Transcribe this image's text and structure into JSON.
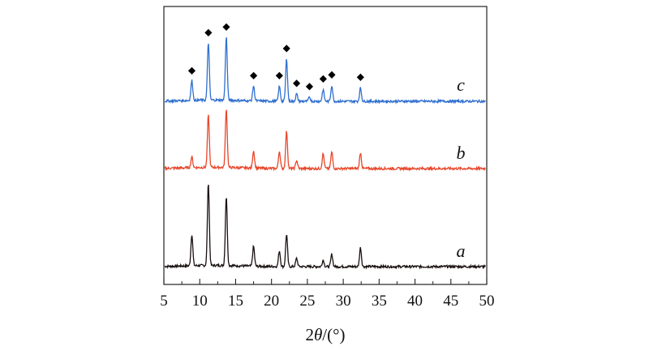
{
  "chart_data": {
    "type": "line",
    "xlabel_prefix": "2",
    "xlabel_theta": "θ",
    "xlabel_suffix": "/(°)",
    "ylabel": "",
    "xlim": [
      5,
      50
    ],
    "x_ticks": [
      5,
      10,
      15,
      20,
      25,
      30,
      35,
      40,
      45,
      50
    ],
    "x_tick_labels": [
      "5",
      "10",
      "15",
      "20",
      "25",
      "30",
      "35",
      "40",
      "45",
      "50"
    ],
    "y_ticks_shown": false,
    "peak_marker": "◆",
    "series": [
      {
        "name": "a",
        "color": "#1a1010",
        "peaks": [
          {
            "x": 8.9,
            "h": 0.38
          },
          {
            "x": 11.2,
            "h": 1.0
          },
          {
            "x": 13.7,
            "h": 0.84
          },
          {
            "x": 17.5,
            "h": 0.24
          },
          {
            "x": 21.1,
            "h": 0.19
          },
          {
            "x": 22.1,
            "h": 0.39
          },
          {
            "x": 23.5,
            "h": 0.1
          },
          {
            "x": 27.2,
            "h": 0.08
          },
          {
            "x": 28.4,
            "h": 0.15
          },
          {
            "x": 32.4,
            "h": 0.23
          }
        ]
      },
      {
        "name": "b",
        "color": "#e8462a",
        "peaks": [
          {
            "x": 8.9,
            "h": 0.13
          },
          {
            "x": 11.2,
            "h": 0.63
          },
          {
            "x": 13.7,
            "h": 0.71
          },
          {
            "x": 17.5,
            "h": 0.21
          },
          {
            "x": 21.1,
            "h": 0.21
          },
          {
            "x": 22.1,
            "h": 0.45
          },
          {
            "x": 23.5,
            "h": 0.1
          },
          {
            "x": 27.2,
            "h": 0.18
          },
          {
            "x": 28.4,
            "h": 0.2
          },
          {
            "x": 32.4,
            "h": 0.19
          }
        ]
      },
      {
        "name": "c",
        "color": "#2f6fcf",
        "peaks": [
          {
            "x": 8.9,
            "h": 0.24
          },
          {
            "x": 11.2,
            "h": 0.7
          },
          {
            "x": 13.7,
            "h": 0.77
          },
          {
            "x": 17.5,
            "h": 0.18
          },
          {
            "x": 21.1,
            "h": 0.18
          },
          {
            "x": 22.1,
            "h": 0.51
          },
          {
            "x": 23.5,
            "h": 0.09
          },
          {
            "x": 25.3,
            "h": 0.05
          },
          {
            "x": 27.2,
            "h": 0.14
          },
          {
            "x": 28.4,
            "h": 0.19
          },
          {
            "x": 32.4,
            "h": 0.16
          }
        ],
        "marked_peaks": [
          8.9,
          11.2,
          13.7,
          17.5,
          21.1,
          22.1,
          23.5,
          25.3,
          27.2,
          28.4,
          32.4
        ]
      }
    ]
  }
}
